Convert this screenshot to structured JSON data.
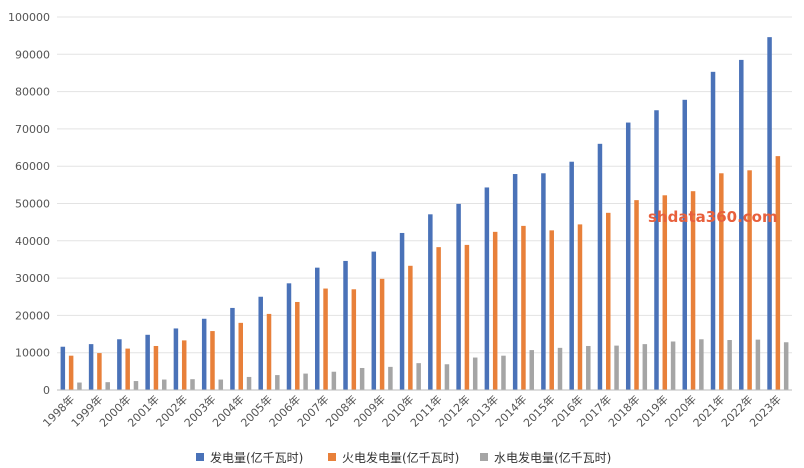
{
  "chart_data": {
    "type": "bar",
    "categories": [
      "1998年",
      "1999年",
      "2000年",
      "2001年",
      "2002年",
      "2003年",
      "2004年",
      "2005年",
      "2006年",
      "2007年",
      "2008年",
      "2009年",
      "2010年",
      "2011年",
      "2012年",
      "2013年",
      "2014年",
      "2015年",
      "2016年",
      "2017年",
      "2018年",
      "2019年",
      "2020年",
      "2021年",
      "2022年",
      "2023年"
    ],
    "series": [
      {
        "name": "发电量(亿千瓦时)",
        "color": "#4a72b8",
        "values": [
          11600,
          12300,
          13600,
          14800,
          16500,
          19100,
          22000,
          25000,
          28600,
          32800,
          34600,
          37100,
          42100,
          47100,
          49900,
          54300,
          57900,
          58100,
          61200,
          66000,
          71700,
          75000,
          77800,
          85300,
          88500,
          94600
        ]
      },
      {
        "name": "火电发电量(亿千瓦时)",
        "color": "#e8803a",
        "values": [
          9200,
          9900,
          11100,
          11800,
          13300,
          15800,
          18000,
          20400,
          23600,
          27200,
          27000,
          29800,
          33300,
          38300,
          38900,
          42400,
          44000,
          42800,
          44400,
          47500,
          50900,
          52200,
          53300,
          58100,
          58900,
          62700
        ]
      },
      {
        "name": "水电发电量(亿千瓦时)",
        "color": "#a5a5a5",
        "values": [
          2000,
          2100,
          2400,
          2800,
          2900,
          2800,
          3500,
          4000,
          4400,
          4900,
          5900,
          6200,
          7200,
          6900,
          8700,
          9200,
          10700,
          11300,
          11800,
          11900,
          12300,
          13000,
          13600,
          13400,
          13500,
          12800
        ]
      }
    ],
    "y_ticks": [
      "0",
      "10000",
      "20000",
      "30000",
      "40000",
      "50000",
      "60000",
      "70000",
      "80000",
      "90000",
      "100000"
    ],
    "ylim": [
      0,
      100000
    ],
    "grid": true,
    "legend_position": "bottom",
    "watermark": "shdata360.com"
  }
}
